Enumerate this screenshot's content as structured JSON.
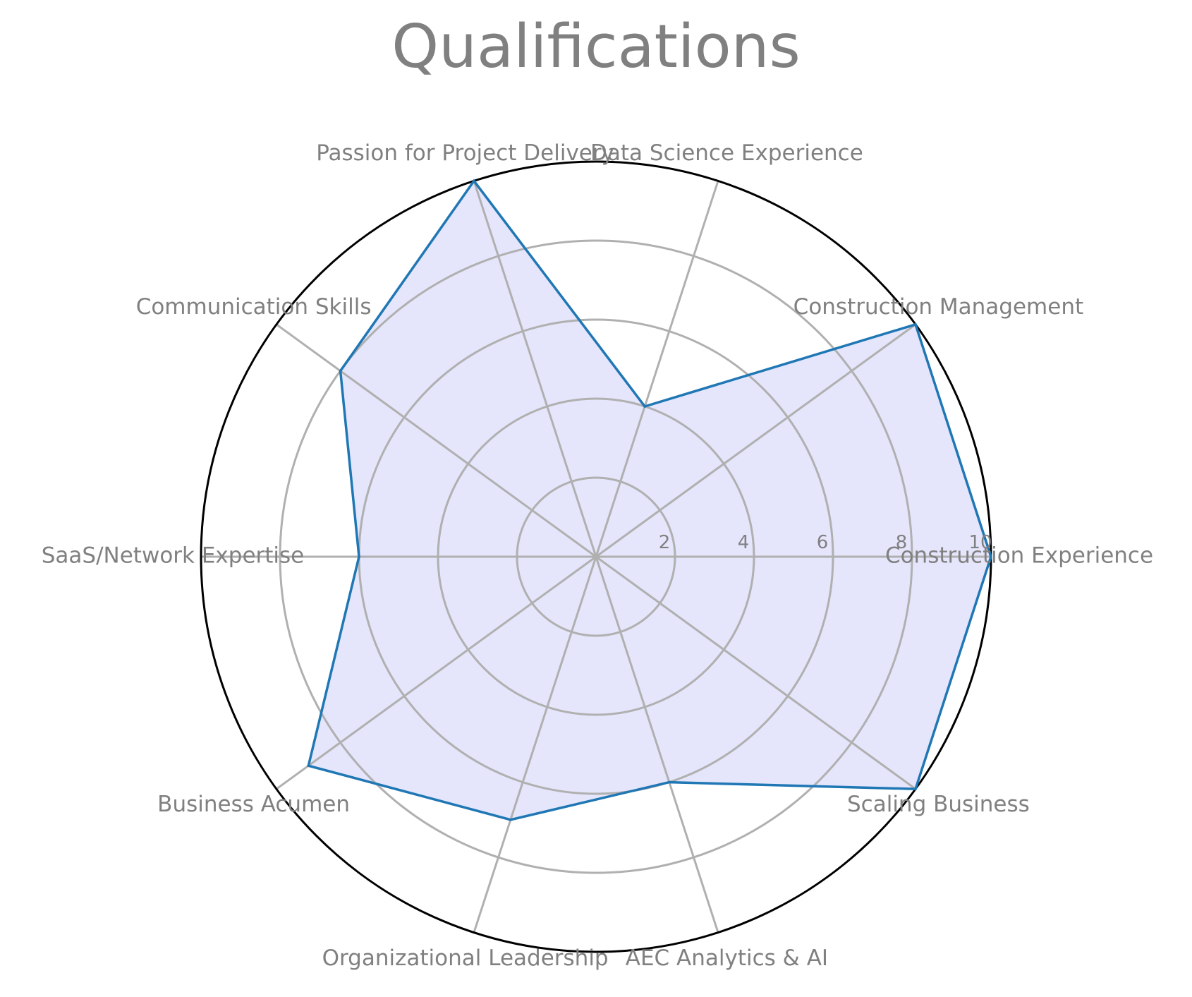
{
  "chart_data": {
    "type": "radar",
    "title": "Qualifications",
    "categories": [
      "Construction Experience",
      "Construction Management",
      "Data Science Experience",
      "Passion for Project Delivery",
      "Communication Skills",
      "SaaS/Network Expertise",
      "Business Acumen",
      "Organizational Leadership",
      "AEC Analytics & AI",
      "Scaling Business"
    ],
    "series": [
      {
        "values": [
          10,
          10,
          4,
          10,
          8,
          6,
          9,
          7,
          6,
          10
        ]
      }
    ],
    "rlim": [
      0,
      10
    ],
    "rticks": [
      "2",
      "4",
      "6",
      "8",
      "10"
    ],
    "grid": true,
    "colors": {
      "line": "#1f77b4",
      "fill": "#e5e5fc",
      "grid": "#b0b0b0",
      "outer_circle": "#000000",
      "text": "#808080"
    }
  }
}
